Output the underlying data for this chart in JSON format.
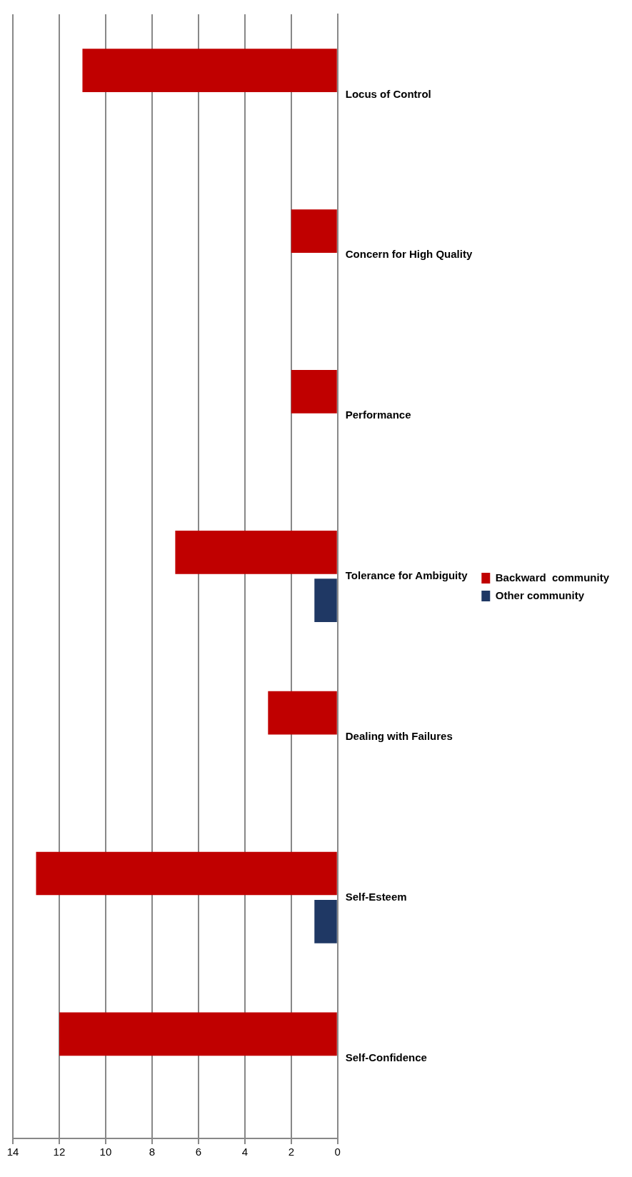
{
  "chart_data": {
    "type": "bar",
    "orientation": "horizontal",
    "categories": [
      "Locus of Control",
      "Concern for High Quality",
      "Performance",
      "Tolerance for Ambiguity",
      "Dealing with Failures",
      "Self-Esteem",
      "Self-Confidence"
    ],
    "series": [
      {
        "name": "Backward  community",
        "color": "#c00000",
        "values": [
          11,
          2,
          2,
          7,
          3,
          13,
          12
        ]
      },
      {
        "name": "Other community",
        "color": "#1f3864",
        "values": [
          0,
          0,
          0,
          1,
          0,
          1,
          0
        ]
      }
    ],
    "xlim": [
      14,
      0
    ],
    "xticks": [
      0,
      2,
      4,
      6,
      8,
      10,
      12,
      14
    ],
    "grid": "x",
    "legend": "right"
  }
}
